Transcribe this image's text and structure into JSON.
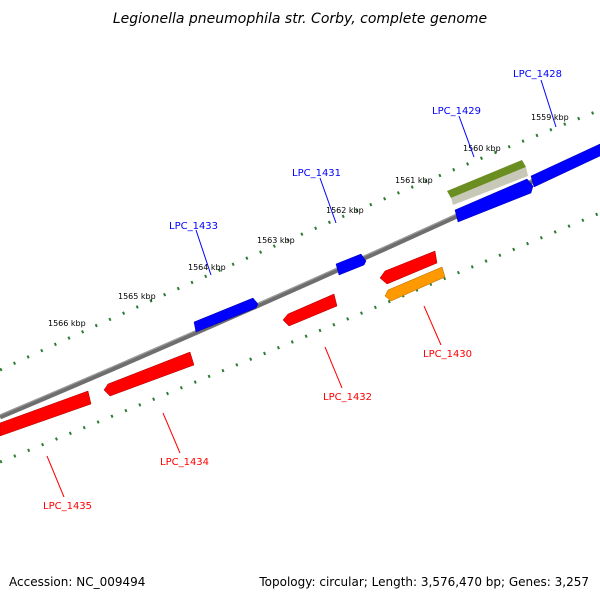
{
  "title": "Legionella pneumophila str. Corby, complete genome",
  "footer": {
    "accession": "Accession: NC_009494",
    "summary": "Topology: circular; Length: 3,576,470 bp; Genes: 3,257"
  },
  "colors": {
    "plus_strand": "#0000ff",
    "minus_strand": "#ff0000",
    "orange_feature": "#ff9900",
    "olive_feature": "#6b8e23",
    "backbone": "#808080",
    "tick": "#2e7d32"
  },
  "kbp_labels": [
    "1559 kbp",
    "1560 kbp",
    "1561 kbp",
    "1562 kbp",
    "1563 kbp",
    "1564 kbp",
    "1565 kbp",
    "1566 kbp"
  ],
  "genes_top": [
    {
      "label": "LPC_1428",
      "color": "blue"
    },
    {
      "label": "LPC_1429",
      "color": "blue"
    },
    {
      "label": "LPC_1431",
      "color": "blue"
    },
    {
      "label": "LPC_1433",
      "color": "blue"
    }
  ],
  "genes_bottom": [
    {
      "label": "LPC_1430",
      "color": "red"
    },
    {
      "label": "LPC_1432",
      "color": "red"
    },
    {
      "label": "LPC_1434",
      "color": "red"
    },
    {
      "label": "LPC_1435",
      "color": "red"
    }
  ]
}
